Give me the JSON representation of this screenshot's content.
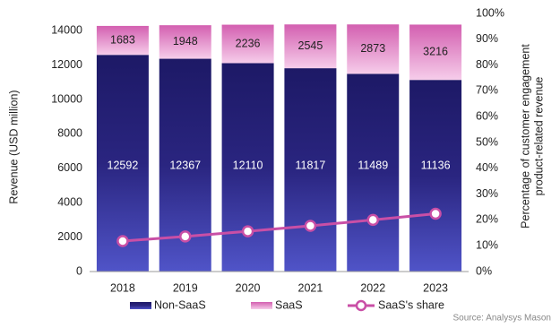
{
  "chart_data": {
    "type": "stacked-bar-line",
    "categories": [
      "2018",
      "2019",
      "2020",
      "2021",
      "2022",
      "2023"
    ],
    "series": [
      {
        "name": "Non-SaaS",
        "color": "#2a2580",
        "values": [
          12592,
          12367,
          12110,
          11817,
          11489,
          11136
        ]
      },
      {
        "name": "SaaS",
        "color": "#e58ccb",
        "values": [
          1683,
          1948,
          2236,
          2545,
          2873,
          3216
        ]
      },
      {
        "name": "SaaS's share",
        "color": "#c94fa6",
        "axis": "y2",
        "values": [
          11.8,
          13.6,
          15.6,
          17.7,
          20.0,
          22.4
        ]
      }
    ],
    "ylabel": "Revenue (USD million)",
    "y2label": [
      "Percentage of customer engagement",
      "product-related revenue"
    ],
    "ylim": [
      0,
      15000
    ],
    "yticks": [
      0,
      2000,
      4000,
      6000,
      8000,
      10000,
      12000,
      14000
    ],
    "y2lim": [
      0,
      100
    ],
    "y2ticks": [
      {
        "value": 0,
        "label": "0%"
      },
      {
        "value": 10,
        "label": "10%"
      },
      {
        "value": 20,
        "label": "20%"
      },
      {
        "value": 30,
        "label": "30%"
      },
      {
        "value": 40,
        "label": "40%"
      },
      {
        "value": 50,
        "label": "50%"
      },
      {
        "value": 60,
        "label": "60%"
      },
      {
        "value": 70,
        "label": "70%"
      },
      {
        "value": 80,
        "label": "80%"
      },
      {
        "value": 90,
        "label": "90%"
      },
      {
        "value": 100,
        "label": "100%"
      }
    ],
    "legend": "bottom",
    "source": "Source: Analysys Mason"
  }
}
